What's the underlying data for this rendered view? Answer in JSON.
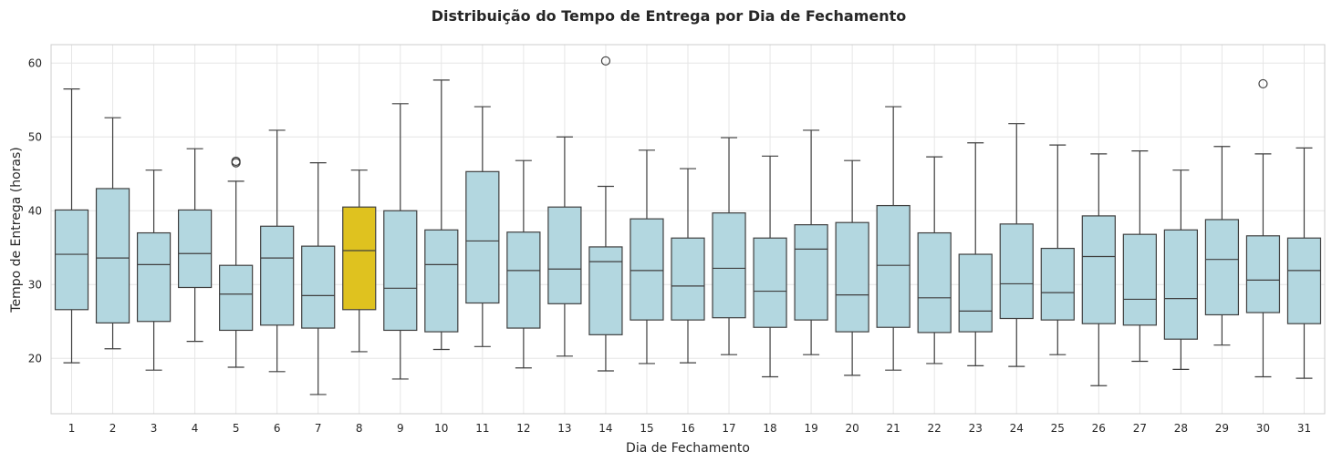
{
  "chart_data": {
    "type": "box",
    "title": "Distribuição do Tempo de Entrega por Dia de Fechamento",
    "xlabel": "Dia de Fechamento",
    "ylabel": "Tempo de Entrega (horas)",
    "ylim": [
      12.5,
      62.5
    ],
    "yticks": [
      20,
      30,
      40,
      50,
      60
    ],
    "grid": true,
    "colors": {
      "box": "#b3d7e0",
      "highlight": "#dfc21f",
      "edge": "#3f3f3f",
      "grid": "#e6e6e6",
      "frame": "#cccccc"
    },
    "categories": [
      "1",
      "2",
      "3",
      "4",
      "5",
      "6",
      "7",
      "8",
      "9",
      "10",
      "11",
      "12",
      "13",
      "14",
      "15",
      "16",
      "17",
      "18",
      "19",
      "20",
      "21",
      "22",
      "23",
      "24",
      "25",
      "26",
      "27",
      "28",
      "29",
      "30",
      "31"
    ],
    "highlight_index": 7,
    "boxes": [
      {
        "whislo": 19.4,
        "q1": 26.6,
        "med": 34.1,
        "q3": 40.1,
        "whishi": 56.5,
        "fliers": []
      },
      {
        "whislo": 21.3,
        "q1": 24.8,
        "med": 33.6,
        "q3": 43.0,
        "whishi": 52.6,
        "fliers": []
      },
      {
        "whislo": 18.4,
        "q1": 25.0,
        "med": 32.7,
        "q3": 37.0,
        "whishi": 45.5,
        "fliers": []
      },
      {
        "whislo": 22.3,
        "q1": 29.6,
        "med": 34.2,
        "q3": 40.1,
        "whishi": 48.4,
        "fliers": []
      },
      {
        "whislo": 18.8,
        "q1": 23.8,
        "med": 28.7,
        "q3": 32.6,
        "whishi": 44.0,
        "fliers": [
          46.5,
          46.7
        ]
      },
      {
        "whislo": 18.2,
        "q1": 24.5,
        "med": 33.6,
        "q3": 37.9,
        "whishi": 50.9,
        "fliers": []
      },
      {
        "whislo": 15.1,
        "q1": 24.1,
        "med": 28.5,
        "q3": 35.2,
        "whishi": 46.5,
        "fliers": []
      },
      {
        "whislo": 20.9,
        "q1": 26.6,
        "med": 34.6,
        "q3": 40.5,
        "whishi": 45.5,
        "fliers": []
      },
      {
        "whislo": 17.2,
        "q1": 23.8,
        "med": 29.5,
        "q3": 40.0,
        "whishi": 54.5,
        "fliers": []
      },
      {
        "whislo": 21.2,
        "q1": 23.6,
        "med": 32.7,
        "q3": 37.4,
        "whishi": 57.7,
        "fliers": []
      },
      {
        "whislo": 21.6,
        "q1": 27.5,
        "med": 35.9,
        "q3": 45.3,
        "whishi": 54.1,
        "fliers": []
      },
      {
        "whislo": 18.7,
        "q1": 24.1,
        "med": 31.9,
        "q3": 37.1,
        "whishi": 46.8,
        "fliers": []
      },
      {
        "whislo": 20.3,
        "q1": 27.4,
        "med": 32.1,
        "q3": 40.5,
        "whishi": 50.0,
        "fliers": []
      },
      {
        "whislo": 18.3,
        "q1": 23.2,
        "med": 33.1,
        "q3": 35.1,
        "whishi": 43.3,
        "fliers": [
          60.3
        ]
      },
      {
        "whislo": 19.3,
        "q1": 25.2,
        "med": 31.9,
        "q3": 38.9,
        "whishi": 48.2,
        "fliers": []
      },
      {
        "whislo": 19.4,
        "q1": 25.2,
        "med": 29.8,
        "q3": 36.3,
        "whishi": 45.7,
        "fliers": []
      },
      {
        "whislo": 20.5,
        "q1": 25.5,
        "med": 32.2,
        "q3": 39.7,
        "whishi": 49.9,
        "fliers": []
      },
      {
        "whislo": 17.5,
        "q1": 24.2,
        "med": 29.1,
        "q3": 36.3,
        "whishi": 47.4,
        "fliers": []
      },
      {
        "whislo": 20.5,
        "q1": 25.2,
        "med": 34.8,
        "q3": 38.1,
        "whishi": 50.9,
        "fliers": []
      },
      {
        "whislo": 17.7,
        "q1": 23.6,
        "med": 28.6,
        "q3": 38.4,
        "whishi": 46.8,
        "fliers": []
      },
      {
        "whislo": 18.4,
        "q1": 24.2,
        "med": 32.6,
        "q3": 40.7,
        "whishi": 54.1,
        "fliers": []
      },
      {
        "whislo": 19.3,
        "q1": 23.5,
        "med": 28.2,
        "q3": 37.0,
        "whishi": 47.3,
        "fliers": []
      },
      {
        "whislo": 19.0,
        "q1": 23.6,
        "med": 26.4,
        "q3": 34.1,
        "whishi": 49.2,
        "fliers": []
      },
      {
        "whislo": 18.9,
        "q1": 25.4,
        "med": 30.1,
        "q3": 38.2,
        "whishi": 51.8,
        "fliers": []
      },
      {
        "whislo": 20.5,
        "q1": 25.2,
        "med": 28.9,
        "q3": 34.9,
        "whishi": 48.9,
        "fliers": []
      },
      {
        "whislo": 16.3,
        "q1": 24.7,
        "med": 33.8,
        "q3": 39.3,
        "whishi": 47.7,
        "fliers": []
      },
      {
        "whislo": 19.6,
        "q1": 24.5,
        "med": 28.0,
        "q3": 36.8,
        "whishi": 48.1,
        "fliers": []
      },
      {
        "whislo": 18.5,
        "q1": 22.6,
        "med": 28.1,
        "q3": 37.4,
        "whishi": 45.5,
        "fliers": []
      },
      {
        "whislo": 21.8,
        "q1": 25.9,
        "med": 33.4,
        "q3": 38.8,
        "whishi": 48.7,
        "fliers": []
      },
      {
        "whislo": 17.5,
        "q1": 26.2,
        "med": 30.6,
        "q3": 36.6,
        "whishi": 47.7,
        "fliers": [
          57.2
        ]
      },
      {
        "whislo": 17.3,
        "q1": 24.7,
        "med": 31.9,
        "q3": 36.3,
        "whishi": 48.5,
        "fliers": []
      }
    ]
  }
}
